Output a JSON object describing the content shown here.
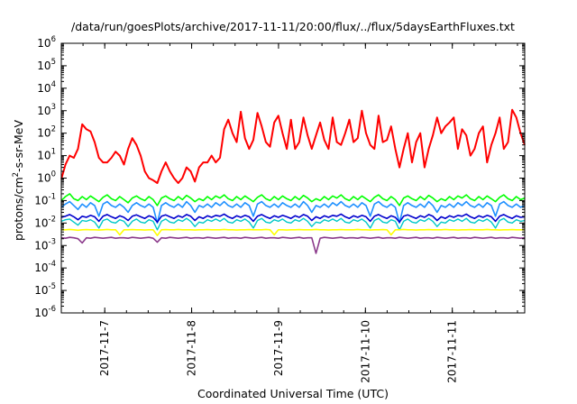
{
  "chart_data": {
    "type": "line",
    "title": "/data/run/goesPlots/archive/2017-11-11/20:00/flux/../flux/5daysEarthFluxes.txt",
    "xlabel": "Coordinated Universal Time (UTC)",
    "ylabel": {
      "prefix": "protons/cm",
      "sup": "2",
      "suffix": "-s-sr-MeV"
    },
    "scale": "log",
    "xlim": [
      "2017-11-06 12:00",
      "2017-11-11 20:00"
    ],
    "ylim": [
      1e-06,
      1000000.0
    ],
    "grid": false,
    "legend": "none",
    "xticks": [
      "2017-11-7",
      "2017-11-8",
      "2017-11-9",
      "2017-11-10",
      "2017-11-11"
    ],
    "yticks": [
      {
        "base": "10",
        "exp": "-6"
      },
      {
        "base": "10",
        "exp": "-5"
      },
      {
        "base": "10",
        "exp": "-4"
      },
      {
        "base": "10",
        "exp": "-3"
      },
      {
        "base": "10",
        "exp": "-2"
      },
      {
        "base": "10",
        "exp": "-1"
      },
      {
        "base": "10",
        "exp": "0"
      },
      {
        "base": "10",
        "exp": "1"
      },
      {
        "base": "10",
        "exp": "2"
      },
      {
        "base": "10",
        "exp": "3"
      },
      {
        "base": "10",
        "exp": "4"
      },
      {
        "base": "10",
        "exp": "5"
      },
      {
        "base": "10",
        "exp": "6"
      }
    ],
    "series_x_range": [
      "2017-11-06 12:00",
      "2017-11-11 20:00"
    ],
    "series": [
      {
        "color": "#ff0000",
        "stroke_width": 2.0,
        "values": [
          0.9,
          4,
          10,
          8,
          20,
          250,
          150,
          120,
          40,
          8,
          5,
          5,
          8,
          15,
          10,
          4,
          20,
          60,
          30,
          10,
          2,
          1,
          0.8,
          0.6,
          2,
          5,
          2,
          1,
          0.6,
          1,
          3,
          2,
          0.7,
          3,
          5,
          5,
          10,
          5,
          8,
          150,
          400,
          100,
          40,
          900,
          60,
          20,
          50,
          800,
          200,
          40,
          25,
          300,
          600,
          100,
          20,
          400,
          20,
          40,
          500,
          80,
          20,
          80,
          300,
          50,
          20,
          500,
          40,
          30,
          100,
          400,
          40,
          60,
          1000,
          100,
          30,
          20,
          600,
          40,
          50,
          200,
          20,
          3,
          20,
          100,
          5,
          40,
          100,
          3,
          20,
          80,
          500,
          100,
          200,
          300,
          500,
          20,
          150,
          80,
          10,
          20,
          100,
          200,
          5,
          30,
          100,
          500,
          20,
          40,
          1100,
          500,
          100,
          30
        ]
      },
      {
        "color": "#00ff00",
        "stroke_width": 1.6,
        "values": [
          0.1,
          0.15,
          0.2,
          0.12,
          0.1,
          0.15,
          0.11,
          0.16,
          0.12,
          0.09,
          0.14,
          0.18,
          0.12,
          0.1,
          0.15,
          0.11,
          0.08,
          0.13,
          0.16,
          0.12,
          0.1,
          0.15,
          0.11,
          0.06,
          0.13,
          0.16,
          0.12,
          0.1,
          0.15,
          0.11,
          0.17,
          0.13,
          0.09,
          0.12,
          0.1,
          0.15,
          0.11,
          0.16,
          0.13,
          0.18,
          0.12,
          0.1,
          0.15,
          0.11,
          0.16,
          0.12,
          0.09,
          0.14,
          0.18,
          0.12,
          0.1,
          0.15,
          0.11,
          0.16,
          0.12,
          0.1,
          0.15,
          0.11,
          0.17,
          0.13,
          0.09,
          0.12,
          0.1,
          0.15,
          0.11,
          0.16,
          0.13,
          0.18,
          0.12,
          0.1,
          0.15,
          0.11,
          0.16,
          0.12,
          0.09,
          0.14,
          0.18,
          0.12,
          0.1,
          0.15,
          0.11,
          0.06,
          0.13,
          0.16,
          0.12,
          0.1,
          0.15,
          0.11,
          0.17,
          0.13,
          0.09,
          0.12,
          0.1,
          0.15,
          0.11,
          0.16,
          0.13,
          0.18,
          0.12,
          0.1,
          0.15,
          0.11,
          0.16,
          0.12,
          0.09,
          0.14,
          0.18,
          0.12,
          0.1,
          0.15,
          0.11,
          0.13
        ]
      },
      {
        "color": "#1e90ff",
        "stroke_width": 1.6,
        "values": [
          0.05,
          0.07,
          0.09,
          0.06,
          0.04,
          0.07,
          0.05,
          0.08,
          0.06,
          0.02,
          0.07,
          0.09,
          0.06,
          0.05,
          0.07,
          0.05,
          0.03,
          0.06,
          0.08,
          0.06,
          0.05,
          0.07,
          0.05,
          0.01,
          0.06,
          0.08,
          0.06,
          0.05,
          0.07,
          0.05,
          0.09,
          0.06,
          0.03,
          0.06,
          0.05,
          0.07,
          0.05,
          0.08,
          0.06,
          0.09,
          0.06,
          0.05,
          0.07,
          0.05,
          0.08,
          0.06,
          0.02,
          0.07,
          0.09,
          0.06,
          0.05,
          0.07,
          0.05,
          0.08,
          0.06,
          0.05,
          0.07,
          0.05,
          0.09,
          0.06,
          0.03,
          0.06,
          0.05,
          0.07,
          0.05,
          0.08,
          0.06,
          0.09,
          0.06,
          0.05,
          0.07,
          0.05,
          0.08,
          0.06,
          0.02,
          0.07,
          0.09,
          0.06,
          0.05,
          0.07,
          0.05,
          0.01,
          0.06,
          0.08,
          0.06,
          0.05,
          0.07,
          0.05,
          0.09,
          0.06,
          0.03,
          0.06,
          0.05,
          0.07,
          0.05,
          0.08,
          0.06,
          0.09,
          0.06,
          0.05,
          0.07,
          0.05,
          0.08,
          0.06,
          0.02,
          0.07,
          0.09,
          0.06,
          0.05,
          0.07,
          0.05,
          0.06
        ]
      },
      {
        "color": "#00c8c8",
        "stroke_width": 1.4,
        "values": [
          0.012,
          0.014,
          0.015,
          0.011,
          0.008,
          0.013,
          0.012,
          0.014,
          0.011,
          0.006,
          0.013,
          0.015,
          0.011,
          0.01,
          0.014,
          0.012,
          0.007,
          0.012,
          0.015,
          0.011,
          0.01,
          0.014,
          0.012,
          0.005,
          0.012,
          0.015,
          0.011,
          0.01,
          0.014,
          0.012,
          0.016,
          0.012,
          0.007,
          0.011,
          0.01,
          0.014,
          0.012,
          0.015,
          0.012,
          0.016,
          0.011,
          0.01,
          0.014,
          0.012,
          0.015,
          0.011,
          0.006,
          0.013,
          0.016,
          0.011,
          0.01,
          0.014,
          0.012,
          0.015,
          0.011,
          0.01,
          0.014,
          0.012,
          0.016,
          0.012,
          0.007,
          0.011,
          0.01,
          0.014,
          0.012,
          0.015,
          0.012,
          0.016,
          0.011,
          0.01,
          0.014,
          0.012,
          0.015,
          0.011,
          0.006,
          0.013,
          0.016,
          0.011,
          0.01,
          0.014,
          0.012,
          0.005,
          0.012,
          0.015,
          0.011,
          0.01,
          0.014,
          0.012,
          0.016,
          0.012,
          0.007,
          0.011,
          0.01,
          0.014,
          0.012,
          0.015,
          0.012,
          0.016,
          0.011,
          0.01,
          0.014,
          0.012,
          0.015,
          0.011,
          0.006,
          0.013,
          0.016,
          0.011,
          0.01,
          0.014,
          0.012,
          0.013
        ]
      },
      {
        "color": "#0000cd",
        "stroke_width": 1.6,
        "values": [
          0.018,
          0.02,
          0.024,
          0.019,
          0.014,
          0.02,
          0.018,
          0.022,
          0.019,
          0.012,
          0.02,
          0.024,
          0.019,
          0.016,
          0.021,
          0.018,
          0.013,
          0.02,
          0.023,
          0.019,
          0.016,
          0.021,
          0.018,
          0.011,
          0.02,
          0.023,
          0.019,
          0.016,
          0.021,
          0.018,
          0.024,
          0.02,
          0.013,
          0.019,
          0.016,
          0.021,
          0.018,
          0.022,
          0.02,
          0.025,
          0.019,
          0.016,
          0.021,
          0.018,
          0.022,
          0.019,
          0.012,
          0.02,
          0.024,
          0.019,
          0.016,
          0.021,
          0.018,
          0.022,
          0.019,
          0.016,
          0.021,
          0.018,
          0.024,
          0.02,
          0.013,
          0.019,
          0.016,
          0.021,
          0.018,
          0.022,
          0.02,
          0.025,
          0.019,
          0.016,
          0.021,
          0.018,
          0.022,
          0.019,
          0.012,
          0.02,
          0.024,
          0.019,
          0.016,
          0.021,
          0.018,
          0.011,
          0.02,
          0.023,
          0.019,
          0.016,
          0.021,
          0.018,
          0.024,
          0.02,
          0.013,
          0.019,
          0.016,
          0.021,
          0.018,
          0.022,
          0.02,
          0.025,
          0.019,
          0.016,
          0.021,
          0.018,
          0.022,
          0.019,
          0.012,
          0.02,
          0.024,
          0.019,
          0.016,
          0.021,
          0.018,
          0.019
        ]
      },
      {
        "color": "#ffff00",
        "stroke_width": 1.6,
        "values": [
          0.005,
          0.005,
          0.0052,
          0.005,
          0.0048,
          0.005,
          0.0051,
          0.005,
          0.005,
          0.0049,
          0.005,
          0.0052,
          0.005,
          0.005,
          0.003,
          0.005,
          0.005,
          0.0051,
          0.005,
          0.005,
          0.0049,
          0.005,
          0.005,
          0.0028,
          0.005,
          0.0051,
          0.005,
          0.005,
          0.0052,
          0.005,
          0.005,
          0.005,
          0.0049,
          0.005,
          0.005,
          0.0051,
          0.005,
          0.005,
          0.005,
          0.0052,
          0.005,
          0.005,
          0.0049,
          0.005,
          0.005,
          0.0051,
          0.005,
          0.005,
          0.005,
          0.0052,
          0.005,
          0.003,
          0.005,
          0.005,
          0.0049,
          0.005,
          0.005,
          0.0051,
          0.005,
          0.005,
          0.005,
          0.0052,
          0.005,
          0.005,
          0.0049,
          0.005,
          0.005,
          0.0051,
          0.005,
          0.005,
          0.005,
          0.0052,
          0.005,
          0.005,
          0.0049,
          0.005,
          0.005,
          0.0051,
          0.005,
          0.003,
          0.005,
          0.005,
          0.0052,
          0.005,
          0.005,
          0.0049,
          0.005,
          0.005,
          0.0051,
          0.005,
          0.005,
          0.005,
          0.0052,
          0.005,
          0.005,
          0.0049,
          0.005,
          0.005,
          0.0051,
          0.005,
          0.005,
          0.005,
          0.0052,
          0.005,
          0.005,
          0.0049,
          0.005,
          0.005,
          0.0051,
          0.005,
          0.005,
          0.005
        ]
      },
      {
        "color": "#8b3a8b",
        "stroke_width": 1.6,
        "values": [
          0.0022,
          0.0021,
          0.0023,
          0.0022,
          0.002,
          0.0013,
          0.0022,
          0.0021,
          0.0023,
          0.0022,
          0.0021,
          0.0022,
          0.0023,
          0.0021,
          0.0022,
          0.0022,
          0.0021,
          0.0023,
          0.0022,
          0.0021,
          0.0022,
          0.0023,
          0.0021,
          0.0014,
          0.0022,
          0.0021,
          0.0023,
          0.0022,
          0.0021,
          0.0022,
          0.0023,
          0.0021,
          0.0022,
          0.0022,
          0.0021,
          0.0023,
          0.0022,
          0.0021,
          0.0022,
          0.0023,
          0.0021,
          0.0022,
          0.0022,
          0.0021,
          0.0023,
          0.0022,
          0.0021,
          0.0022,
          0.0023,
          0.0021,
          0.0022,
          0.0022,
          0.0021,
          0.0023,
          0.0022,
          0.0021,
          0.0022,
          0.0023,
          0.0021,
          0.0022,
          0.0022,
          0.00045,
          0.0021,
          0.0023,
          0.0022,
          0.0021,
          0.0022,
          0.0023,
          0.0021,
          0.0022,
          0.0022,
          0.0021,
          0.0023,
          0.0022,
          0.0021,
          0.0022,
          0.0023,
          0.0021,
          0.0022,
          0.0022,
          0.0021,
          0.0023,
          0.0022,
          0.0021,
          0.0022,
          0.0023,
          0.0021,
          0.0022,
          0.0022,
          0.0021,
          0.0023,
          0.0022,
          0.0021,
          0.0022,
          0.0023,
          0.0021,
          0.0022,
          0.0022,
          0.0021,
          0.0023,
          0.0022,
          0.0021,
          0.0022,
          0.0023,
          0.0021,
          0.0022,
          0.0022,
          0.0021,
          0.0023,
          0.0022,
          0.0021,
          0.0022
        ]
      }
    ]
  }
}
